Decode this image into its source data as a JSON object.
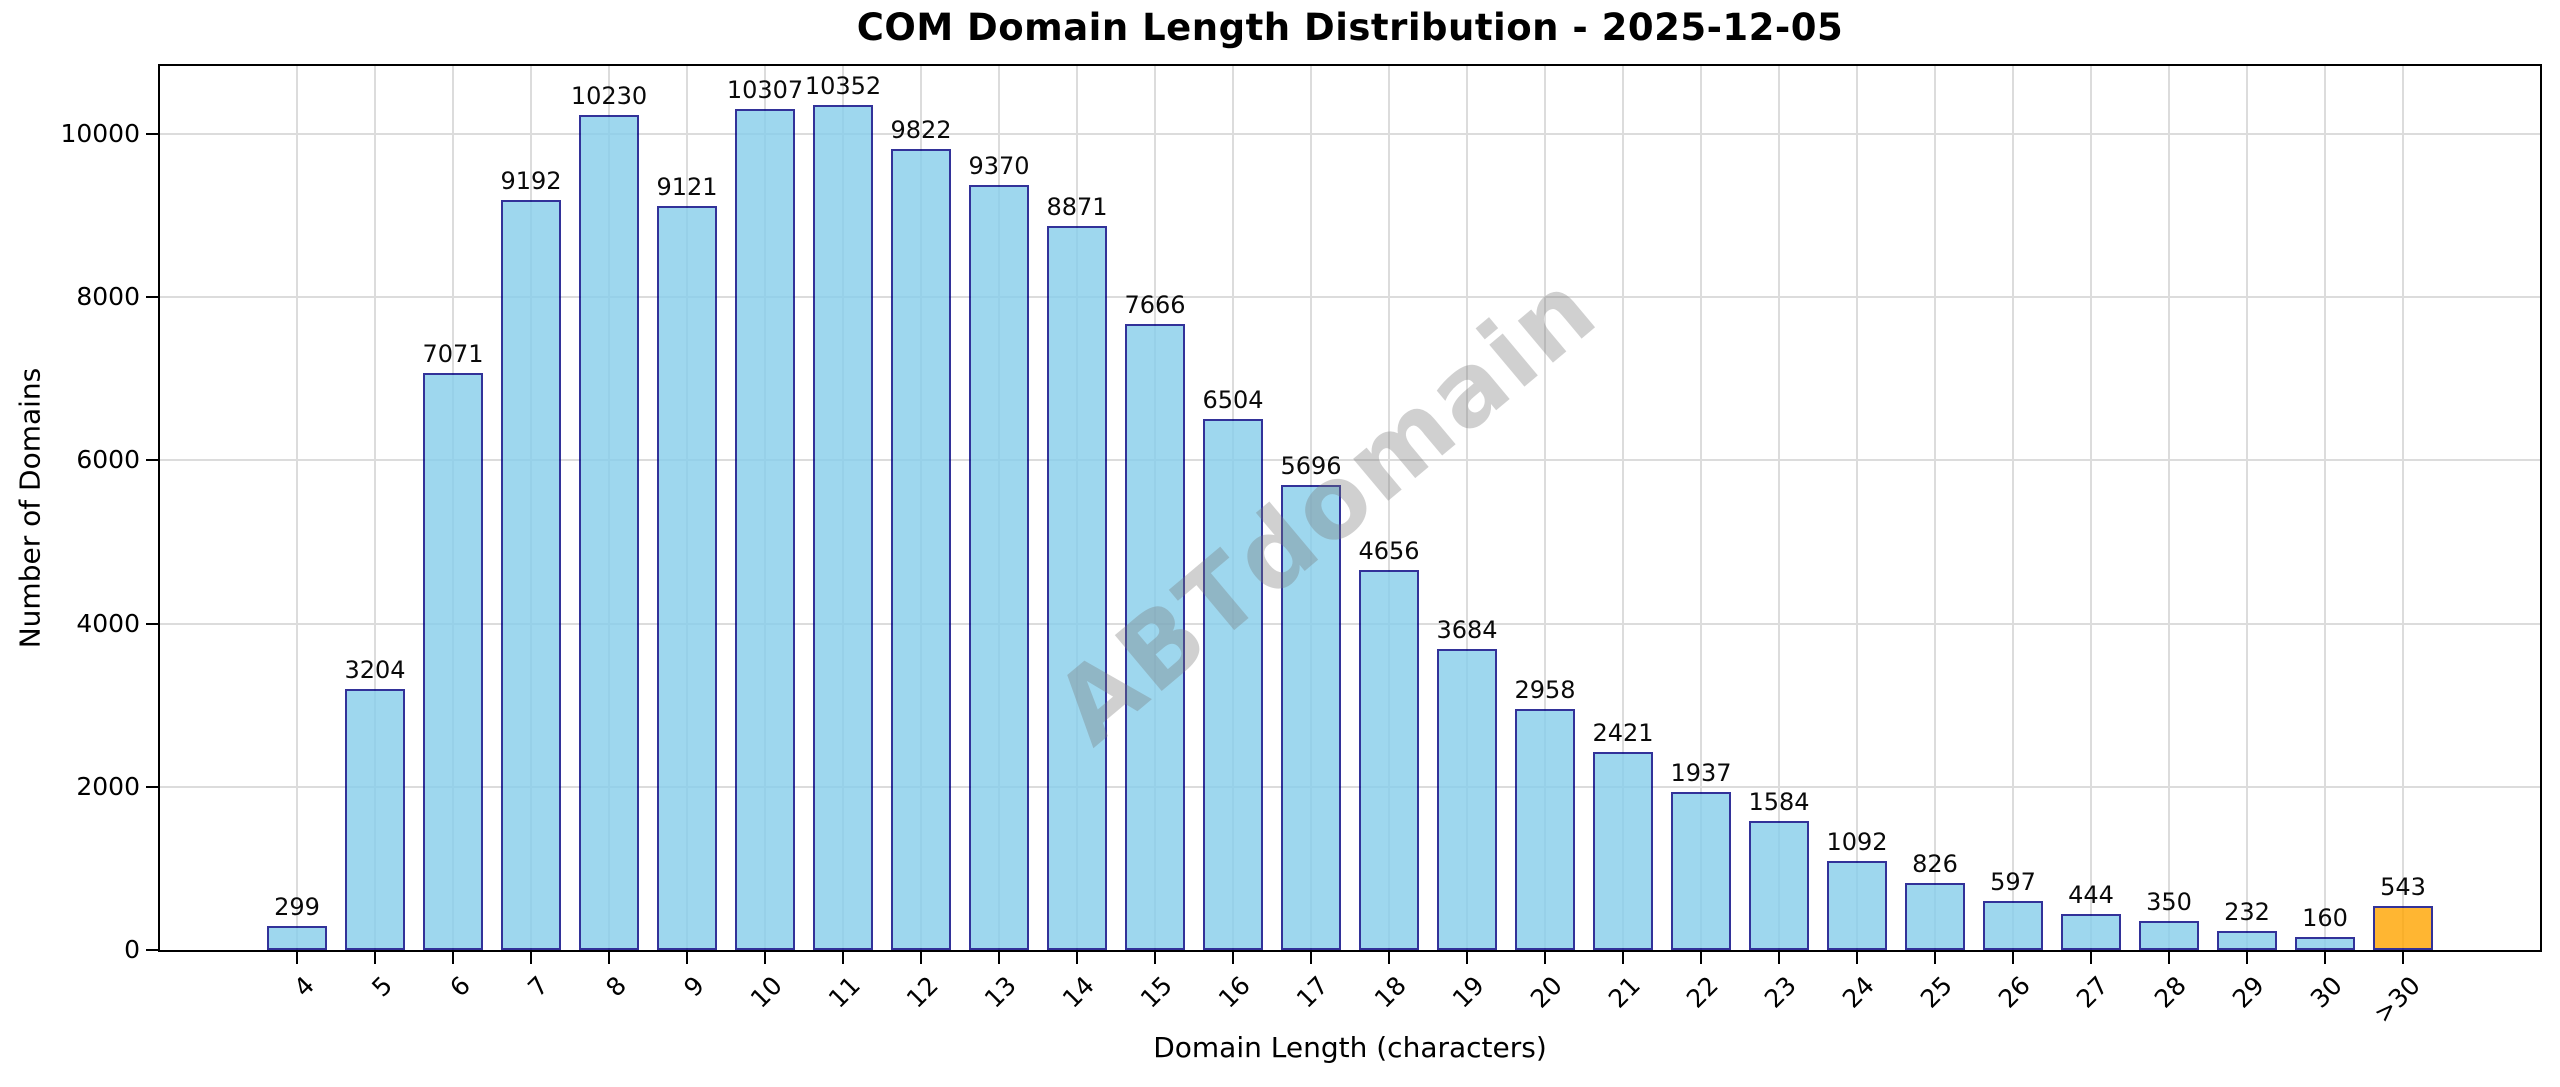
{
  "chart_data": {
    "type": "bar",
    "title": "COM Domain Length Distribution - 2025-12-05",
    "xlabel": "Domain Length (characters)",
    "ylabel": "Number of Domains",
    "watermark": "ABTdomain",
    "categories": [
      "4",
      "5",
      "6",
      "7",
      "8",
      "9",
      "10",
      "11",
      "12",
      "13",
      "14",
      "15",
      "16",
      "17",
      "18",
      "19",
      "20",
      "21",
      "22",
      "23",
      "24",
      "25",
      "26",
      "27",
      "28",
      "29",
      "30",
      ">30"
    ],
    "values": [
      299,
      3204,
      7071,
      9192,
      10230,
      9121,
      10307,
      10352,
      9822,
      9370,
      8871,
      7666,
      6504,
      5696,
      4656,
      3684,
      2958,
      2421,
      1937,
      1584,
      1092,
      826,
      597,
      444,
      350,
      232,
      160,
      543
    ],
    "bar_value_labels": [
      "299",
      "3204",
      "7071",
      "9192",
      "10230",
      "9121",
      "10307",
      "10352",
      "9822",
      "9370",
      "8871",
      "7666",
      "6504",
      "5696",
      "4656",
      "3684",
      "2958",
      "2421",
      "1937",
      "1584",
      "1092",
      "826",
      "597",
      "444",
      "350",
      "232",
      "160",
      "543"
    ],
    "yticks": [
      0,
      2000,
      4000,
      6000,
      8000,
      10000
    ],
    "ylim": [
      0,
      10880
    ],
    "grid": true,
    "legend": "none",
    "colors": {
      "bar_fill": "#87CEEB",
      "bar_edge": "#000080",
      "last_bar_fill": "#FFA500",
      "grid": "#DCDCDC",
      "watermark": "#787878",
      "axis": "#000000"
    }
  }
}
